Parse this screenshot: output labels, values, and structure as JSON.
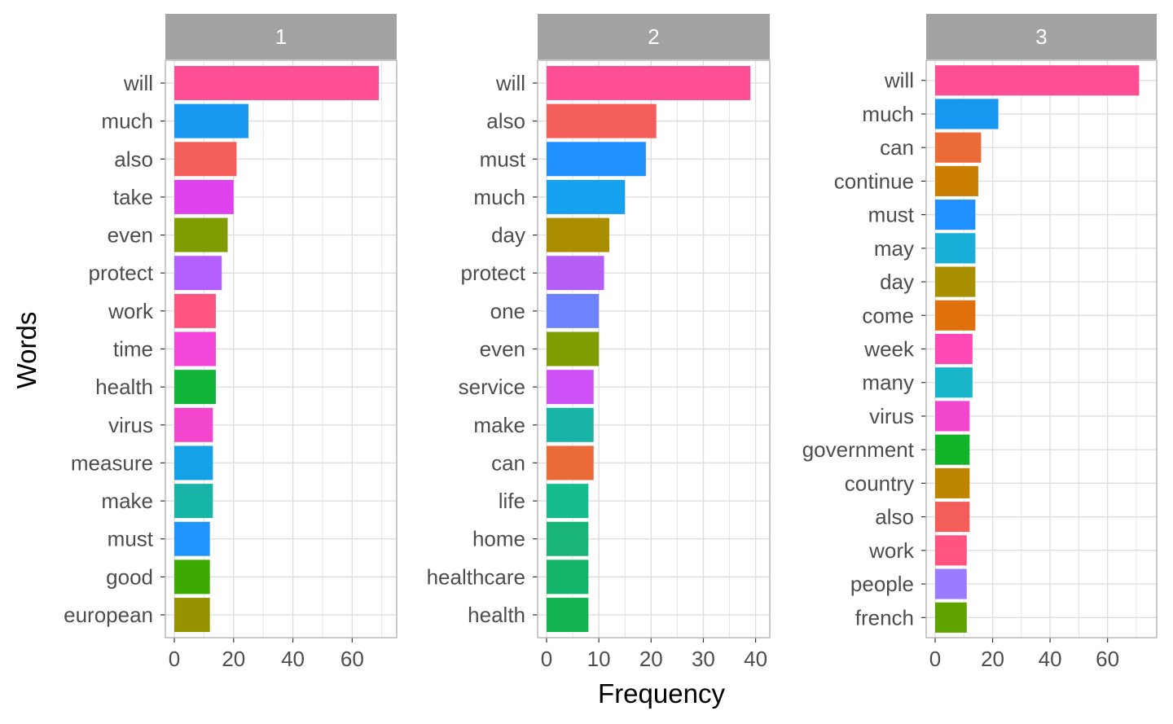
{
  "chart_data": {
    "type": "bar",
    "orientation": "horizontal",
    "xlabel": "Frequency",
    "ylabel": "Words",
    "grid": true,
    "panels": [
      {
        "label": "1",
        "xlim": [
          0,
          72
        ],
        "xticks": [
          0,
          20,
          40,
          60
        ],
        "categories": [
          "will",
          "much",
          "also",
          "take",
          "even",
          "protect",
          "work",
          "time",
          "health",
          "virus",
          "measure",
          "make",
          "must",
          "good",
          "european"
        ],
        "values": [
          69,
          25,
          21,
          20,
          18,
          16,
          14,
          14,
          14,
          13,
          13,
          13,
          12,
          12,
          12
        ],
        "colors": [
          "#FF4F94",
          "#1797F0",
          "#F35E5A",
          "#E042EE",
          "#7F9C00",
          "#B45EFF",
          "#FF5480",
          "#F345D8",
          "#13B43A",
          "#F346CF",
          "#13A2E8",
          "#16B5A7",
          "#2195FF",
          "#3CAA00",
          "#979200"
        ]
      },
      {
        "label": "2",
        "xlim": [
          0,
          41
        ],
        "xticks": [
          0,
          10,
          20,
          30,
          40
        ],
        "categories": [
          "will",
          "also",
          "must",
          "much",
          "day",
          "protect",
          "one",
          "even",
          "service",
          "make",
          "can",
          "life",
          "home",
          "healthcare",
          "health"
        ],
        "values": [
          39,
          21,
          19,
          15,
          12,
          11,
          10,
          10,
          9,
          9,
          9,
          8,
          8,
          8,
          8
        ],
        "colors": [
          "#FF4F94",
          "#F35E5A",
          "#2190FF",
          "#16A0F0",
          "#AA8E00",
          "#B45EF5",
          "#6E82FF",
          "#7F9C00",
          "#CC50F5",
          "#18B4A8",
          "#EA6A38",
          "#17BC8E",
          "#18B478",
          "#14B468",
          "#13B450"
        ]
      },
      {
        "label": "3",
        "xlim": [
          0,
          74
        ],
        "xticks": [
          0,
          20,
          40,
          60
        ],
        "categories": [
          "will",
          "much",
          "can",
          "continue",
          "must",
          "may",
          "day",
          "come",
          "week",
          "many",
          "virus",
          "government",
          "country",
          "also",
          "work",
          "people",
          "french"
        ],
        "values": [
          71,
          22,
          16,
          15,
          14,
          14,
          14,
          14,
          13,
          13,
          12,
          12,
          12,
          12,
          11,
          11,
          11
        ],
        "colors": [
          "#FF4F94",
          "#1797F0",
          "#EA6A38",
          "#CC7E00",
          "#2190FF",
          "#18AED8",
          "#A89000",
          "#E0700C",
          "#FF48B4",
          "#18B4C8",
          "#F346CF",
          "#13B42A",
          "#BE8600",
          "#F35E5A",
          "#FF5480",
          "#9B7CFF",
          "#5EA300"
        ]
      }
    ]
  }
}
